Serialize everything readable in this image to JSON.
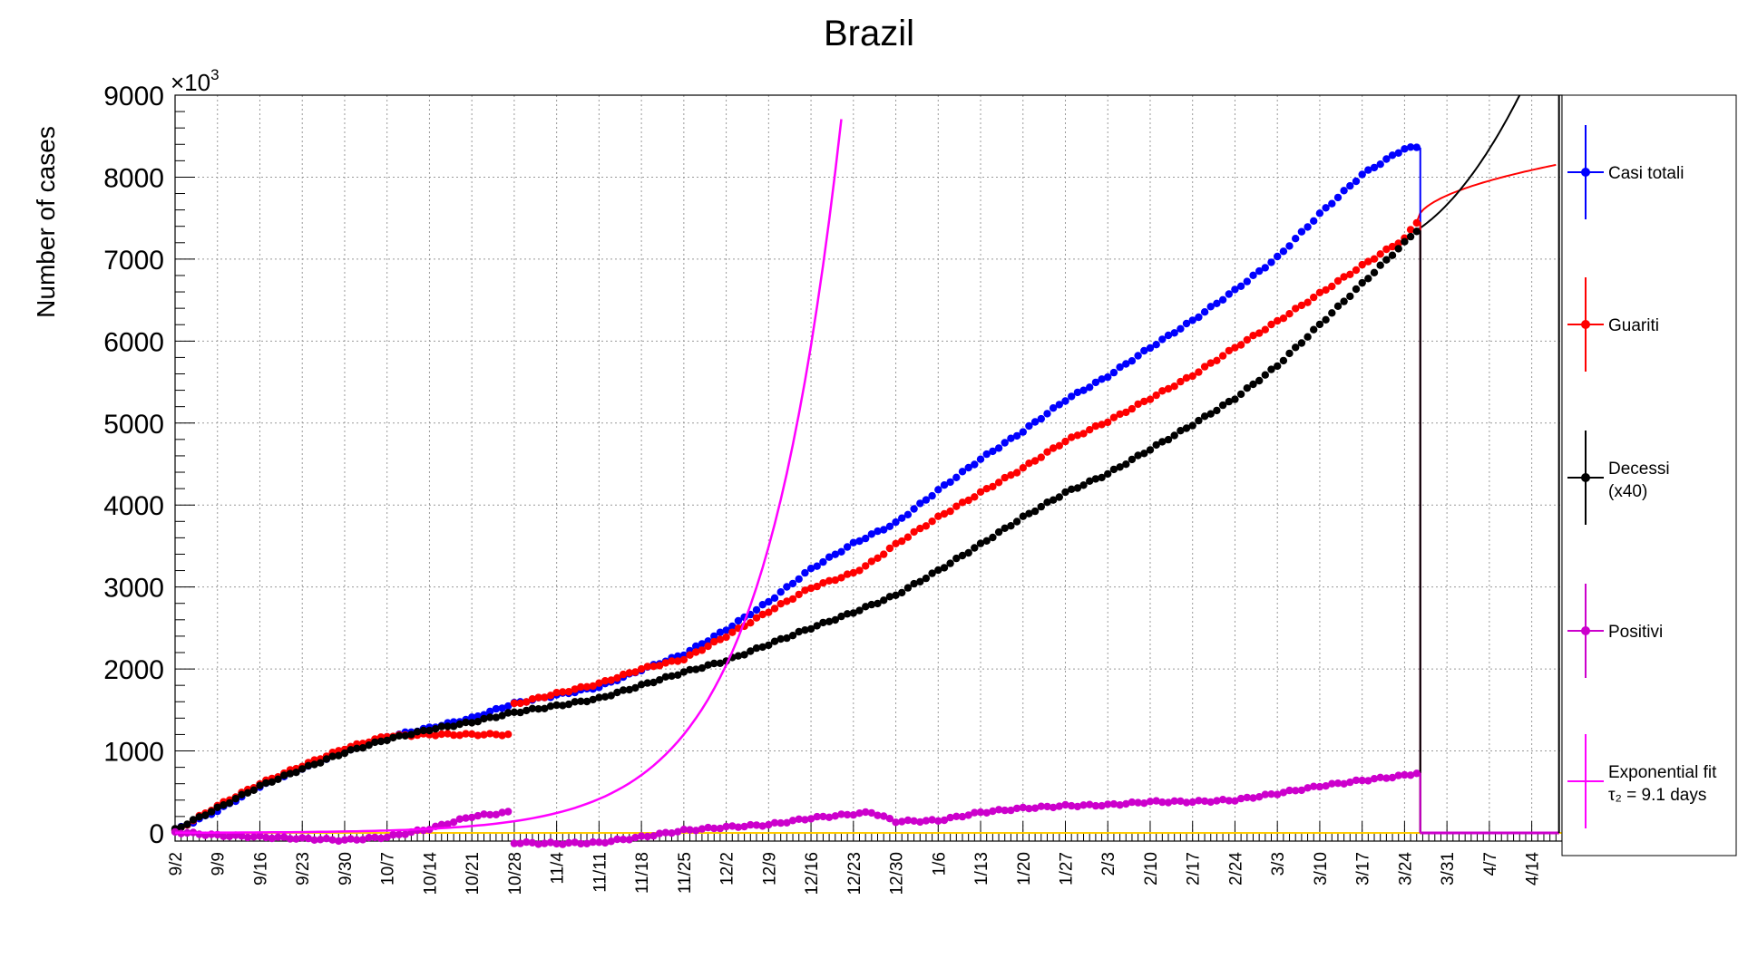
{
  "chart_data": {
    "type": "line",
    "title": "Brazil",
    "ylabel": "Number of cases",
    "xlabel": "",
    "y_multiplier_base": "×10",
    "y_multiplier_exp": "3",
    "ylim": [
      -100,
      9000
    ],
    "yticks": [
      0,
      1000,
      2000,
      3000,
      4000,
      5000,
      6000,
      7000,
      8000,
      9000
    ],
    "x_tick_labels": [
      "9/2",
      "9/9",
      "9/16",
      "9/23",
      "9/30",
      "10/7",
      "10/14",
      "10/21",
      "10/28",
      "11/4",
      "11/11",
      "11/18",
      "11/25",
      "12/2",
      "12/9",
      "12/16",
      "12/23",
      "12/30",
      "1/6",
      "1/13",
      "1/20",
      "1/27",
      "2/3",
      "2/10",
      "2/17",
      "2/24",
      "3/3",
      "3/10",
      "3/17",
      "3/24",
      "3/31",
      "4/7",
      "4/14"
    ],
    "x_range_days": [
      0,
      229
    ],
    "grid": true,
    "legend_position": "right",
    "series": [
      {
        "name": "Casi totali",
        "color": "#0000ff",
        "style": "markers",
        "days": [
          0,
          7,
          14,
          21,
          28,
          35,
          42,
          49,
          56,
          63,
          70,
          77,
          84,
          91,
          98,
          105,
          112,
          119,
          126,
          133,
          140,
          147,
          154,
          161,
          168,
          175,
          182,
          189,
          196,
          203,
          205
        ],
        "values": [
          30,
          270,
          570,
          790,
          1000,
          1170,
          1280,
          1400,
          1580,
          1680,
          1780,
          1990,
          2180,
          2480,
          2820,
          3220,
          3530,
          3780,
          4180,
          4560,
          4900,
          5280,
          5570,
          5920,
          6250,
          6620,
          7020,
          7550,
          8030,
          8350,
          8360
        ]
      },
      {
        "name": "Guariti",
        "color": "#ff0000",
        "style": "markers",
        "days": [
          0,
          7,
          14,
          21,
          28,
          35,
          42,
          49,
          55,
          55.5,
          63,
          70,
          77,
          84,
          91,
          98,
          105,
          112,
          115,
          119,
          126,
          133,
          140,
          147,
          154,
          161,
          168,
          175,
          182,
          189,
          196,
          203,
          205
        ],
        "values": [
          20,
          330,
          600,
          820,
          1030,
          1180,
          1200,
          1200,
          1200,
          1560,
          1700,
          1820,
          2000,
          2120,
          2400,
          2700,
          2990,
          3170,
          3300,
          3520,
          3850,
          4150,
          4450,
          4780,
          5020,
          5300,
          5580,
          5920,
          6240,
          6580,
          6920,
          7250,
          7450
        ]
      },
      {
        "name": "Decessi (x40)",
        "color": "#000000",
        "style": "markers",
        "days": [
          0,
          7,
          14,
          21,
          28,
          35,
          42,
          49,
          56,
          63,
          70,
          77,
          84,
          91,
          98,
          105,
          112,
          119,
          126,
          133,
          140,
          147,
          154,
          161,
          168,
          175,
          182,
          189,
          196,
          203,
          205
        ],
        "values": [
          40,
          300,
          570,
          780,
          980,
          1140,
          1260,
          1350,
          1470,
          1550,
          1640,
          1800,
          1960,
          2100,
          2300,
          2500,
          2690,
          2900,
          3200,
          3520,
          3850,
          4150,
          4380,
          4680,
          4980,
          5300,
          5700,
          6200,
          6700,
          7200,
          7350
        ]
      },
      {
        "name": "Positivi",
        "color": "#cc00cc",
        "style": "markers",
        "days": [
          0,
          7,
          14,
          21,
          28,
          35,
          42,
          49,
          55,
          56,
          63,
          70,
          77,
          84,
          91,
          98,
          105,
          112,
          115,
          119,
          126,
          133,
          140,
          147,
          154,
          161,
          168,
          175,
          182,
          189,
          196,
          203,
          205
        ],
        "values": [
          10,
          -30,
          -50,
          -70,
          -90,
          -50,
          50,
          200,
          250,
          -120,
          -130,
          -120,
          -50,
          30,
          70,
          100,
          180,
          230,
          250,
          140,
          150,
          250,
          300,
          330,
          340,
          380,
          380,
          400,
          480,
          570,
          640,
          700,
          730
        ]
      },
      {
        "name": "Exponential fit",
        "color": "#ff00ff",
        "style": "line",
        "fit_start_value": 2,
        "doubling_days": 9.1
      }
    ],
    "fit_curves": [
      {
        "color": "#ff0000",
        "from_day": 205,
        "to_day": 228,
        "start_value": 7450,
        "end_value": 8150
      },
      {
        "color": "#000000",
        "from_day": 205,
        "to_day": 222,
        "start_value": 7350,
        "end_value": 9000
      }
    ],
    "baseline": {
      "color": "#ffcc00",
      "value": 0
    },
    "legend": [
      {
        "label": "Casi totali",
        "color": "#0000ff",
        "marker": true
      },
      {
        "label": "Guariti",
        "color": "#ff0000",
        "marker": true
      },
      {
        "label": "Decessi",
        "label2": "(x40)",
        "color": "#000000",
        "marker": true
      },
      {
        "label": "Positivi",
        "color": "#cc00cc",
        "marker": true
      },
      {
        "label": "Exponential fit",
        "label2": "τ₂ = 9.1 days",
        "color": "#ff00ff",
        "marker": false
      }
    ]
  }
}
